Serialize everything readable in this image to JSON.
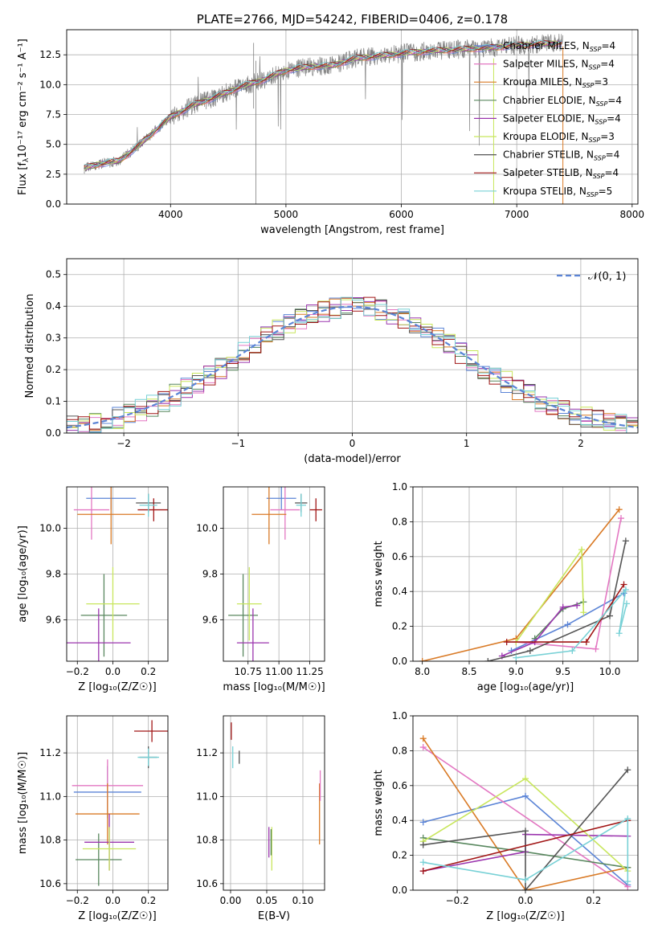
{
  "figure_title": "PLATE=2766, MJD=54242, FIBERID=0406, z=0.178",
  "colors": {
    "chab_miles": "#5b84d6",
    "salp_miles": "#e377c2",
    "krou_miles": "#d97a26",
    "chab_elodie": "#58875e",
    "salp_elodie": "#9b35ae",
    "krou_elodie": "#c8e65c",
    "chab_stelib": "#555555",
    "salp_stelib": "#a11616",
    "krou_stelib": "#78d1d6",
    "gauss": "#5b84d6",
    "data": "#808080"
  },
  "chart_data": [
    {
      "id": "spectrum",
      "type": "line",
      "title": "PLATE=2766, MJD=54242, FIBERID=0406, z=0.178",
      "xlabel": "wavelength [Angstrom, rest frame]",
      "ylabel_pre": "Flux [f",
      "ylabel_sub": "λ",
      "ylabel_post": "10⁻¹⁷ erg cm⁻² s⁻¹ A⁻¹]",
      "xlim": [
        3100,
        8050
      ],
      "ylim": [
        0,
        14.6
      ],
      "xticks": [
        4000,
        5000,
        6000,
        7000,
        8000
      ],
      "yticks": [
        0.0,
        2.5,
        5.0,
        7.5,
        10.0,
        12.5
      ],
      "legend_position": "upper-right",
      "series": [
        {
          "key": "chab_miles",
          "label": "Chabrier MILES, N",
          "sub": "SSP",
          "suffix": "=4"
        },
        {
          "key": "salp_miles",
          "label": "Salpeter MILES, N",
          "sub": "SSP",
          "suffix": "=4"
        },
        {
          "key": "krou_miles",
          "label": "Kroupa MILES, N",
          "sub": "SSP",
          "suffix": "=3"
        },
        {
          "key": "chab_elodie",
          "label": "Chabrier ELODIE, N",
          "sub": "SSP",
          "suffix": "=4"
        },
        {
          "key": "salp_elodie",
          "label": "Salpeter ELODIE, N",
          "sub": "SSP",
          "suffix": "=4"
        },
        {
          "key": "krou_elodie",
          "label": "Kroupa ELODIE, N",
          "sub": "SSP",
          "suffix": "=3"
        },
        {
          "key": "chab_stelib",
          "label": "Chabrier STELIB, N",
          "sub": "SSP",
          "suffix": "=4"
        },
        {
          "key": "salp_stelib",
          "label": "Salpeter STELIB, N",
          "sub": "SSP",
          "suffix": "=4"
        },
        {
          "key": "krou_stelib",
          "label": "Kroupa STELIB, N",
          "sub": "SSP",
          "suffix": "=5"
        }
      ],
      "data_shape": {
        "x": [
          3250,
          3400,
          3550,
          3700,
          3850,
          4000,
          4200,
          4400,
          4600,
          4800,
          5000,
          5200,
          5400,
          5600,
          5800,
          6000,
          6200,
          6400,
          6600,
          6800,
          7000,
          7200,
          7400
        ],
        "y": [
          3.0,
          3.4,
          3.6,
          4.7,
          6.0,
          7.3,
          8.3,
          9.0,
          9.8,
          10.4,
          11.2,
          11.5,
          11.6,
          12.2,
          12.4,
          12.6,
          12.8,
          12.9,
          13.0,
          13.1,
          13.3,
          13.4,
          13.5
        ]
      }
    },
    {
      "id": "residuals",
      "type": "histogram",
      "xlabel": "(data-model)/error",
      "ylabel": "Normed distribution",
      "xlim": [
        -2.5,
        2.5
      ],
      "ylim": [
        0,
        0.55
      ],
      "xticks": [
        -2,
        -1,
        0,
        1,
        2
      ],
      "yticks": [
        0.0,
        0.1,
        0.2,
        0.3,
        0.4,
        0.5
      ],
      "gauss_label": "𝒩(0, 1)",
      "legend_position": "upper-right",
      "bin_width": 0.1
    },
    {
      "id": "age_vs_Z",
      "type": "errorbar",
      "xlabel": "Z [log₁₀(Z/Z☉)]",
      "ylabel": "age  [log₁₀(age/yr)]",
      "xlim": [
        -0.26,
        0.31
      ],
      "ylim": [
        9.42,
        10.18
      ],
      "xticks": [
        -0.2,
        0.0,
        0.2
      ],
      "yticks": [
        9.6,
        9.8,
        10.0
      ],
      "points": [
        {
          "key": "chab_miles",
          "x": -0.01,
          "xerr": 0.14,
          "y": 10.13,
          "yerr": 0.05
        },
        {
          "key": "salp_miles",
          "x": -0.12,
          "xerr": 0.1,
          "y": 10.08,
          "yerr": 0.13
        },
        {
          "key": "krou_miles",
          "x": -0.01,
          "xerr": 0.19,
          "y": 10.06,
          "yerr": 0.13
        },
        {
          "key": "chab_elodie",
          "x": -0.05,
          "xerr": 0.13,
          "y": 9.62,
          "yerr": 0.18
        },
        {
          "key": "salp_elodie",
          "x": -0.08,
          "xerr": 0.18,
          "y": 9.5,
          "yerr": 0.15
        },
        {
          "key": "krou_elodie",
          "x": 0.0,
          "xerr": 0.15,
          "y": 9.67,
          "yerr": 0.16
        },
        {
          "key": "chab_stelib",
          "x": 0.2,
          "xerr": 0.07,
          "y": 10.11,
          "yerr": 0.04
        },
        {
          "key": "salp_stelib",
          "x": 0.23,
          "xerr": 0.09,
          "y": 10.08,
          "yerr": 0.05
        },
        {
          "key": "krou_stelib",
          "x": 0.2,
          "xerr": 0.05,
          "y": 10.1,
          "yerr": 0.05
        }
      ]
    },
    {
      "id": "age_vs_mass",
      "type": "errorbar",
      "xlabel": "mass [log₁₀(M/M☉)]",
      "xlim": [
        10.55,
        11.37
      ],
      "ylim": [
        9.42,
        10.18
      ],
      "xticks": [
        10.75,
        11.0,
        11.25
      ],
      "xticklabels": [
        "10.75",
        "11.00",
        "11.25"
      ],
      "yticks": [
        9.6,
        9.8,
        10.0
      ],
      "points": [
        {
          "key": "chab_miles",
          "x": 11.02,
          "xerr": 0.12,
          "y": 10.13,
          "yerr": 0.05
        },
        {
          "key": "salp_miles",
          "x": 11.05,
          "xerr": 0.12,
          "y": 10.08,
          "yerr": 0.13
        },
        {
          "key": "krou_miles",
          "x": 10.92,
          "xerr": 0.14,
          "y": 10.06,
          "yerr": 0.13
        },
        {
          "key": "chab_elodie",
          "x": 10.71,
          "xerr": 0.12,
          "y": 9.62,
          "yerr": 0.18
        },
        {
          "key": "salp_elodie",
          "x": 10.79,
          "xerr": 0.13,
          "y": 9.5,
          "yerr": 0.15
        },
        {
          "key": "krou_elodie",
          "x": 10.76,
          "xerr": 0.1,
          "y": 9.67,
          "yerr": 0.16
        },
        {
          "key": "chab_stelib",
          "x": 11.18,
          "xerr": 0.05,
          "y": 10.11,
          "yerr": 0.04
        },
        {
          "key": "salp_stelib",
          "x": 11.3,
          "xerr": 0.05,
          "y": 10.08,
          "yerr": 0.05
        },
        {
          "key": "krou_stelib",
          "x": 11.18,
          "xerr": 0.04,
          "y": 10.1,
          "yerr": 0.05
        }
      ]
    },
    {
      "id": "weight_vs_age",
      "type": "line",
      "xlabel": "age  [log₁₀(age/yr)]",
      "ylabel": "mass weight",
      "xlim": [
        7.9,
        10.3
      ],
      "ylim": [
        0,
        1.0
      ],
      "xticks": [
        8.0,
        8.5,
        9.0,
        9.5,
        10.0
      ],
      "yticks": [
        0.0,
        0.2,
        0.4,
        0.6,
        0.8,
        1.0
      ],
      "series": [
        {
          "key": "chab_miles",
          "x": [
            8.95,
            9.55,
            10.15
          ],
          "y": [
            0.06,
            0.21,
            0.39
          ]
        },
        {
          "key": "salp_miles",
          "x": [
            9.0,
            9.85,
            10.12
          ],
          "y": [
            0.11,
            0.07,
            0.82
          ]
        },
        {
          "key": "krou_miles",
          "x": [
            8.0,
            9.0,
            10.1
          ],
          "y": [
            0.0,
            0.13,
            0.87
          ]
        },
        {
          "key": "chab_elodie",
          "x": [
            9.2,
            9.5,
            9.72
          ],
          "y": [
            0.13,
            0.3,
            0.34
          ]
        },
        {
          "key": "salp_elodie",
          "x": [
            8.85,
            9.2,
            9.5,
            9.65
          ],
          "y": [
            0.03,
            0.11,
            0.31,
            0.32
          ]
        },
        {
          "key": "krou_elodie",
          "x": [
            9.0,
            9.7,
            9.72
          ],
          "y": [
            0.11,
            0.64,
            0.28
          ]
        },
        {
          "key": "chab_stelib",
          "x": [
            8.7,
            9.15,
            10.0,
            10.17
          ],
          "y": [
            0.0,
            0.06,
            0.26,
            0.69
          ]
        },
        {
          "key": "salp_stelib",
          "x": [
            8.9,
            9.75,
            10.15
          ],
          "y": [
            0.11,
            0.11,
            0.44
          ]
        },
        {
          "key": "krou_stelib",
          "x": [
            9.0,
            9.6,
            10.17,
            10.1,
            10.18
          ],
          "y": [
            0.02,
            0.06,
            0.41,
            0.16,
            0.33
          ]
        }
      ]
    },
    {
      "id": "mass_vs_Z",
      "type": "errorbar",
      "xlabel": "Z [log₁₀(Z/Z☉)]",
      "ylabel": "mass [log₁₀(M/M☉)]",
      "xlim": [
        -0.26,
        0.31
      ],
      "ylim": [
        10.57,
        11.37
      ],
      "xticks": [
        -0.2,
        0.0,
        0.2
      ],
      "yticks": [
        10.6,
        10.8,
        11.0,
        11.2
      ],
      "points": [
        {
          "key": "chab_miles",
          "x": -0.03,
          "xerr": 0.19,
          "y": 11.02,
          "yerr": 0.12
        },
        {
          "key": "salp_miles",
          "x": -0.03,
          "xerr": 0.2,
          "y": 11.05,
          "yerr": 0.12
        },
        {
          "key": "krou_miles",
          "x": -0.03,
          "xerr": 0.18,
          "y": 10.92,
          "yerr": 0.14
        },
        {
          "key": "chab_elodie",
          "x": -0.08,
          "xerr": 0.13,
          "y": 10.71,
          "yerr": 0.12
        },
        {
          "key": "salp_elodie",
          "x": -0.02,
          "xerr": 0.14,
          "y": 10.79,
          "yerr": 0.13
        },
        {
          "key": "krou_elodie",
          "x": -0.02,
          "xerr": 0.15,
          "y": 10.76,
          "yerr": 0.1
        },
        {
          "key": "chab_stelib",
          "x": 0.2,
          "xerr": 0.05,
          "y": 11.18,
          "yerr": 0.05
        },
        {
          "key": "salp_stelib",
          "x": 0.22,
          "xerr": 0.1,
          "y": 11.3,
          "yerr": 0.05
        },
        {
          "key": "krou_stelib",
          "x": 0.2,
          "xerr": 0.06,
          "y": 11.18,
          "yerr": 0.04
        }
      ]
    },
    {
      "id": "mass_vs_ebv",
      "type": "errorbar",
      "xlabel": "E(B-V)",
      "xlim": [
        -0.01,
        0.13
      ],
      "ylim": [
        10.57,
        11.37
      ],
      "xticks": [
        0.0,
        0.05,
        0.1
      ],
      "xticklabels": [
        "0.00",
        "0.05",
        "0.10"
      ],
      "yticks": [
        10.6,
        10.8,
        11.0,
        11.2
      ],
      "points": [
        {
          "key": "krou_miles",
          "x": 0.123,
          "y": 10.92,
          "yerr": 0.14
        },
        {
          "key": "salp_miles",
          "x": 0.124,
          "y": 11.05,
          "yerr": 0.07
        },
        {
          "key": "salp_elodie",
          "x": 0.053,
          "y": 10.79,
          "yerr": 0.07
        },
        {
          "key": "krou_elodie",
          "x": 0.057,
          "y": 10.76,
          "yerr": 0.1
        },
        {
          "key": "chab_elodie",
          "x": 0.056,
          "y": 10.79,
          "yerr": 0.06
        },
        {
          "key": "chab_stelib",
          "x": 0.012,
          "y": 11.18,
          "yerr": 0.03
        },
        {
          "key": "salp_stelib",
          "x": 0.001,
          "y": 11.3,
          "yerr": 0.04
        },
        {
          "key": "krou_stelib",
          "x": 0.003,
          "y": 11.18,
          "yerr": 0.05
        }
      ]
    },
    {
      "id": "weight_vs_Z",
      "type": "line",
      "xlabel": "Z [log₁₀(Z/Z☉)]",
      "ylabel": "mass weight",
      "xlim": [
        -0.33,
        0.33
      ],
      "ylim": [
        0,
        1.0
      ],
      "xticks": [
        -0.2,
        0.0,
        0.2
      ],
      "yticks": [
        0.0,
        0.2,
        0.4,
        0.6,
        0.8,
        1.0
      ],
      "series": [
        {
          "key": "chab_miles",
          "x": [
            -0.3,
            0.0,
            0.3
          ],
          "y": [
            0.39,
            0.54,
            0.03
          ]
        },
        {
          "key": "salp_miles",
          "x": [
            -0.3,
            0.3
          ],
          "y": [
            0.82,
            0.02
          ]
        },
        {
          "key": "krou_miles",
          "x": [
            -0.3,
            0.0,
            0.3
          ],
          "y": [
            0.87,
            0.0,
            0.13
          ]
        },
        {
          "key": "chab_elodie",
          "x": [
            -0.3,
            0.0,
            0.3
          ],
          "y": [
            0.3,
            0.22,
            0.13
          ]
        },
        {
          "key": "salp_elodie",
          "x": [
            -0.3,
            0.0,
            0.0,
            0.3
          ],
          "y": [
            0.11,
            0.22,
            0.32,
            0.31
          ]
        },
        {
          "key": "krou_elodie",
          "x": [
            -0.3,
            0.0,
            0.3
          ],
          "y": [
            0.28,
            0.64,
            0.11
          ]
        },
        {
          "key": "chab_stelib",
          "x": [
            -0.3,
            0.0,
            0.0,
            0.3
          ],
          "y": [
            0.26,
            0.34,
            0.0,
            0.69
          ]
        },
        {
          "key": "salp_stelib",
          "x": [
            -0.3,
            0.3
          ],
          "y": [
            0.11,
            0.4
          ]
        },
        {
          "key": "krou_stelib",
          "x": [
            -0.3,
            0.0,
            0.3,
            0.3
          ],
          "y": [
            0.16,
            0.06,
            0.41,
            0.05
          ]
        }
      ]
    }
  ]
}
